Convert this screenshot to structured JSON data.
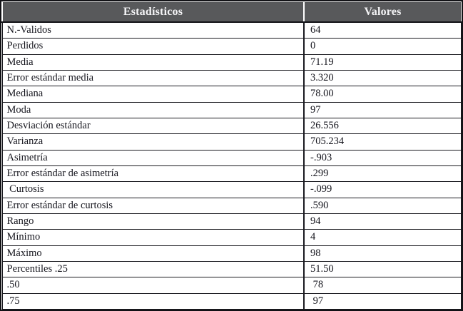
{
  "chart_data": {
    "type": "table",
    "columns": [
      "Estadísticos",
      "Valores"
    ],
    "rows": [
      [
        "N.-Validos",
        "64"
      ],
      [
        "Perdidos",
        "0"
      ],
      [
        "Media",
        "71.19"
      ],
      [
        "Error estándar media",
        "3.320"
      ],
      [
        "Mediana",
        "78.00"
      ],
      [
        "Moda",
        "97"
      ],
      [
        "Desviación estándar",
        "26.556"
      ],
      [
        "Varianza",
        "705.234"
      ],
      [
        "Asimetría",
        "-.903"
      ],
      [
        "Error estándar de asimetría",
        ".299"
      ],
      [
        "Curtosis",
        "-.099"
      ],
      [
        "Error estándar de curtosis",
        ".590"
      ],
      [
        "Rango",
        "94"
      ],
      [
        "Mínimo",
        "4"
      ],
      [
        "Máximo",
        "98"
      ],
      [
        "Percentiles .25",
        "51.50"
      ],
      [
        ".50",
        "78"
      ],
      [
        ".75",
        "97"
      ]
    ]
  },
  "table": {
    "header": {
      "statistics": "Estadísticos",
      "values": "Valores"
    },
    "rows": [
      {
        "label": "N.-Validos",
        "value": "64"
      },
      {
        "label": "Perdidos",
        "value": "0"
      },
      {
        "label": "Media",
        "value": "71.19"
      },
      {
        "label": "Error estándar media",
        "value": "3.320"
      },
      {
        "label": "Mediana",
        "value": "78.00"
      },
      {
        "label": "Moda",
        "value": "97"
      },
      {
        "label": "Desviación estándar",
        "value": "26.556"
      },
      {
        "label": "Varianza",
        "value": "705.234"
      },
      {
        "label": "Asimetría",
        "value": "-.903"
      },
      {
        "label": "Error estándar de asimetría",
        "value": ".299"
      },
      {
        "label": " Curtosis",
        "value": "-.099"
      },
      {
        "label": "Error estándar de curtosis",
        "value": ".590"
      },
      {
        "label": "Rango",
        "value": "94"
      },
      {
        "label": "Mínimo",
        "value": "4"
      },
      {
        "label": "Máximo",
        "value": "98"
      },
      {
        "label": "Percentiles .25",
        "value": "51.50"
      },
      {
        "label": ".50",
        "value": " 78"
      },
      {
        "label": ".75",
        "value": " 97"
      }
    ]
  },
  "colors": {
    "header_bg": "#58595b",
    "header_text": "#f4f4f6",
    "body_text": "#15151d",
    "border": "#121216"
  }
}
